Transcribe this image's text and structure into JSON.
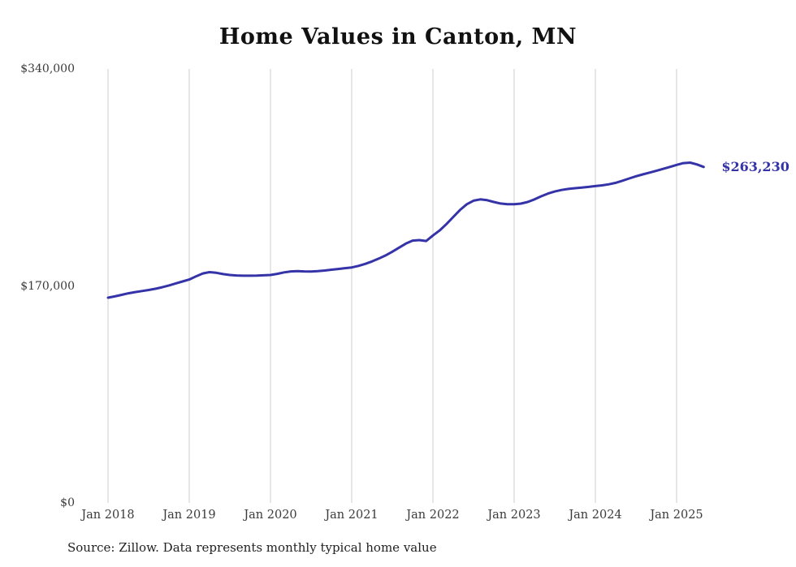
{
  "page": {
    "background": "#ffffff",
    "gridline_color": "#cccccc",
    "axis_label_color": "#3b3b3b"
  },
  "chart_data": {
    "type": "line",
    "title": "Home Values in Canton, MN",
    "x": [
      "2018-01",
      "2018-02",
      "2018-03",
      "2018-04",
      "2018-05",
      "2018-06",
      "2018-07",
      "2018-08",
      "2018-09",
      "2018-10",
      "2018-11",
      "2018-12",
      "2019-01",
      "2019-02",
      "2019-03",
      "2019-04",
      "2019-05",
      "2019-06",
      "2019-07",
      "2019-08",
      "2019-09",
      "2019-10",
      "2019-11",
      "2019-12",
      "2020-01",
      "2020-02",
      "2020-03",
      "2020-04",
      "2020-05",
      "2020-06",
      "2020-07",
      "2020-08",
      "2020-09",
      "2020-10",
      "2020-11",
      "2020-12",
      "2021-01",
      "2021-02",
      "2021-03",
      "2021-04",
      "2021-05",
      "2021-06",
      "2021-07",
      "2021-08",
      "2021-09",
      "2021-10",
      "2021-11",
      "2021-12",
      "2022-01",
      "2022-02",
      "2022-03",
      "2022-04",
      "2022-05",
      "2022-06",
      "2022-07",
      "2022-08",
      "2022-09",
      "2022-10",
      "2022-11",
      "2022-12",
      "2023-01",
      "2023-02",
      "2023-03",
      "2023-04",
      "2023-05",
      "2023-06",
      "2023-07",
      "2023-08",
      "2023-09",
      "2023-10",
      "2023-11",
      "2023-12",
      "2024-01",
      "2024-02",
      "2024-03",
      "2024-04",
      "2024-05",
      "2024-06",
      "2024-07",
      "2024-08",
      "2024-09",
      "2024-10",
      "2024-11",
      "2024-12",
      "2025-01",
      "2025-02",
      "2025-03",
      "2025-04",
      "2025-05"
    ],
    "values": [
      160800,
      161800,
      163000,
      164200,
      165200,
      166000,
      166800,
      167800,
      169000,
      170400,
      172000,
      173500,
      175000,
      177500,
      179800,
      180800,
      180300,
      179300,
      178600,
      178200,
      178000,
      178000,
      178100,
      178300,
      178600,
      179500,
      180600,
      181400,
      181600,
      181400,
      181300,
      181600,
      182100,
      182700,
      183300,
      183900,
      184500,
      185700,
      187300,
      189200,
      191400,
      193900,
      196800,
      200000,
      203200,
      205500,
      205900,
      205200,
      209500,
      213500,
      218500,
      224000,
      229500,
      234000,
      236800,
      237800,
      237200,
      235800,
      234600,
      234000,
      234000,
      234500,
      235800,
      237800,
      240200,
      242400,
      244000,
      245200,
      246000,
      246600,
      247100,
      247600,
      248200,
      248800,
      249600,
      250800,
      252400,
      254200,
      255900,
      257400,
      258800,
      260200,
      261700,
      263200,
      264800,
      266200,
      266600,
      265200,
      263230
    ],
    "ylim": [
      0,
      340000
    ],
    "yticks": [
      0,
      170000,
      340000
    ],
    "ytick_labels": [
      "$0",
      "$170,000",
      "$340,000"
    ],
    "xticks": [
      "2018-01",
      "2019-01",
      "2020-01",
      "2021-01",
      "2022-01",
      "2023-01",
      "2024-01",
      "2025-01"
    ],
    "xtick_labels": [
      "Jan 2018",
      "Jan 2019",
      "Jan 2020",
      "Jan 2021",
      "Jan 2022",
      "Jan 2023",
      "Jan 2024",
      "Jan 2025"
    ],
    "grid": "vertical-only",
    "legend": "none",
    "line_color": "#3533a8",
    "end_value": 263230,
    "end_label": "$263,230",
    "source_note": "Source: Zillow. Data represents monthly typical home value"
  }
}
